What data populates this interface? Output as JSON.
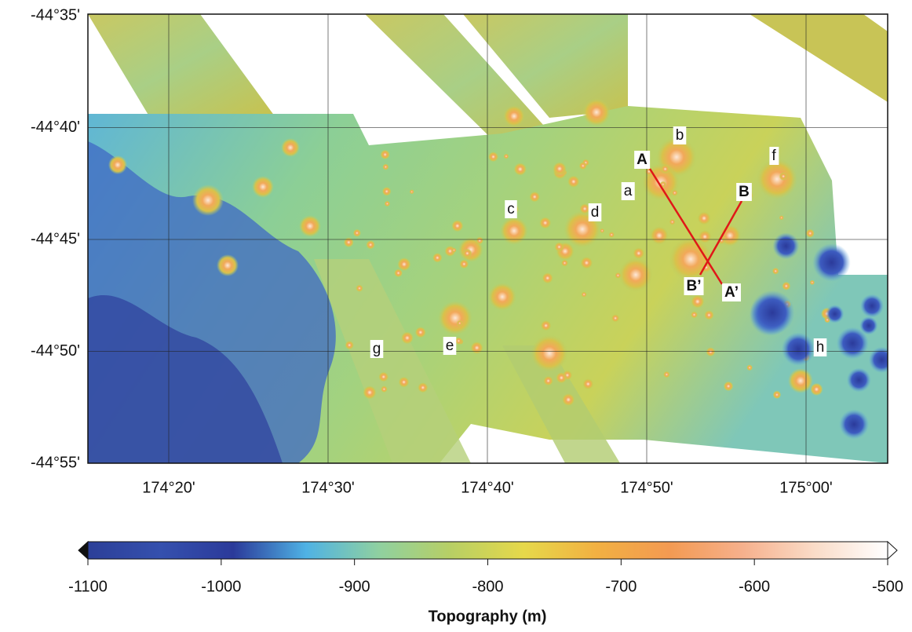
{
  "map": {
    "lat_labels": [
      "-44°35'",
      "-44°40'",
      "-44°45'",
      "-44°50'",
      "-44°55'"
    ],
    "lon_labels": [
      "174°20'",
      "174°30'",
      "174°40'",
      "174°50'",
      "175°00'"
    ],
    "features": [
      "a",
      "b",
      "c",
      "d",
      "e",
      "f",
      "g",
      "h"
    ],
    "profile_labels": [
      "A",
      "A’",
      "B",
      "B’"
    ]
  },
  "colorbar": {
    "title": "Topography (m)",
    "range": [
      -1100,
      -500
    ],
    "ticks": [
      -1100,
      -1000,
      -900,
      -800,
      -700,
      -600,
      -500
    ],
    "colors": [
      "#2c3f98",
      "#3550ae",
      "#2b3a9a",
      "#4fb2e4",
      "#8fd0a0",
      "#b8cf64",
      "#e6d84a",
      "#f2b042",
      "#f39a52",
      "#f6b08c",
      "#fadcc8",
      "#ffffff"
    ]
  }
}
